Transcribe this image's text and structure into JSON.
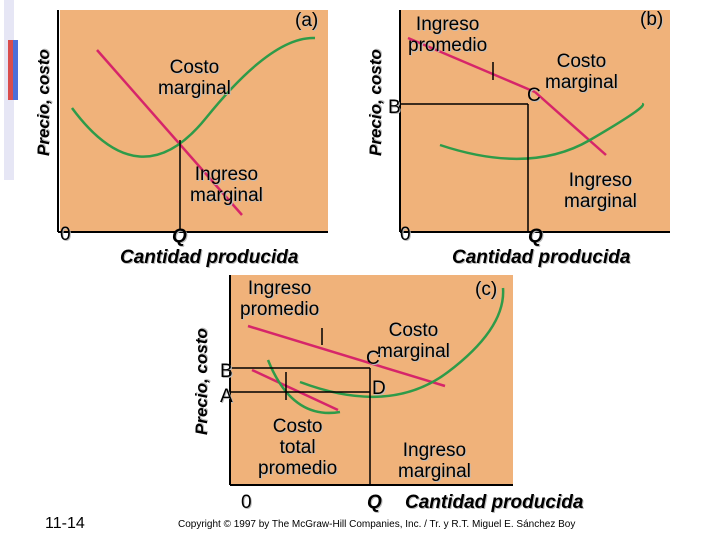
{
  "panel_a": {
    "tag": "(a)",
    "ylabel": "Precio, costo",
    "mc_label": "Costo\nmarginal",
    "mr_label": "Ingreso\nmarginal",
    "origin": "0",
    "q_label": "Q",
    "xlabel": "Cantidad producida"
  },
  "panel_b": {
    "tag": "(b)",
    "ylabel": "Precio, costo",
    "ar_label": "Ingreso\npromedio",
    "mc_label": "Costo\nmarginal",
    "mr_label": "Ingreso\nmarginal",
    "point_b": "B",
    "point_c": "C",
    "origin": "0",
    "q_label": "Q",
    "xlabel": "Cantidad producida"
  },
  "panel_c": {
    "tag": "(c)",
    "ylabel": "Precio, costo",
    "ar_label": "Ingreso\npromedio",
    "mc_label": "Costo\nmarginal",
    "atc_label": "Costo\ntotal\npromedio",
    "mr_label": "Ingreso\nmarginal",
    "point_a": "A",
    "point_b": "B",
    "point_c": "C",
    "point_d": "D",
    "origin": "0",
    "q_label": "Q",
    "xlabel": "Cantidad producida"
  },
  "footer": {
    "slide_number": "11-14",
    "copyright": "Copyright © 1997 by The McGraw-Hill Companies, Inc. / Tr. y R.T. Miguel E. Sánchez Boy"
  },
  "colors": {
    "panel_bg": "#f0b27a",
    "cost_curve": "#2e9b49",
    "revenue_curve": "#d6256a",
    "axis": "#000000"
  }
}
